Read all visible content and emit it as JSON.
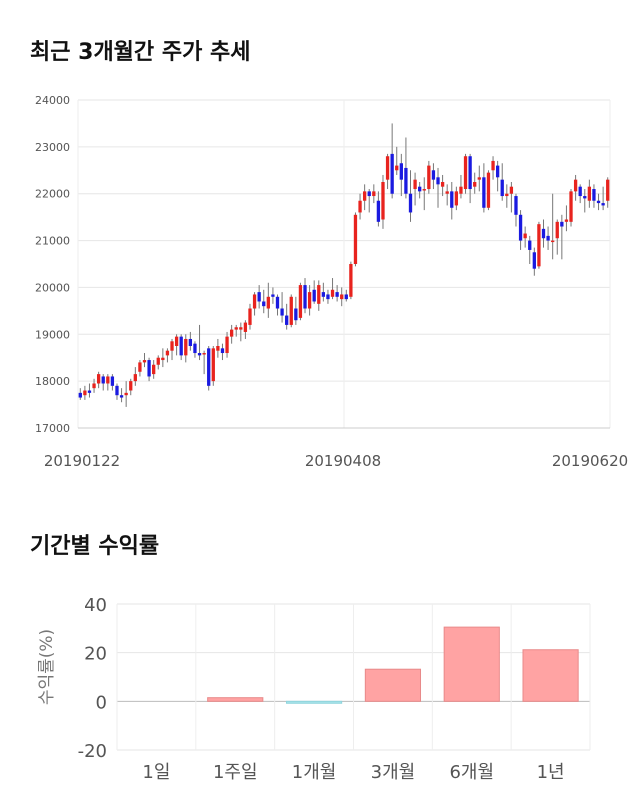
{
  "sections": {
    "price_title": "최근 3개월간 주가 추세",
    "returns_title": "기간별 수익률"
  },
  "chart_data": [
    {
      "type": "candlestick",
      "title": "최근 3개월간 주가 추세",
      "ylim": [
        17000,
        24000
      ],
      "yticks": [
        "24000",
        "23000",
        "22000",
        "21000",
        "20000",
        "19000",
        "18000",
        "17000"
      ],
      "xticks": [
        "20190122",
        "20190408",
        "20190620"
      ],
      "grid": true,
      "colors": {
        "up": "#e8231e",
        "down": "#1a1ae0",
        "wick": "#777777"
      },
      "candles": [
        [
          17750,
          17650,
          17850,
          17600
        ],
        [
          17700,
          17800,
          17900,
          17600
        ],
        [
          17800,
          17750,
          17950,
          17650
        ],
        [
          17850,
          17950,
          18050,
          17750
        ],
        [
          17950,
          18150,
          18200,
          17850
        ],
        [
          18100,
          17950,
          18150,
          17800
        ],
        [
          17950,
          18100,
          18150,
          17800
        ],
        [
          18100,
          17900,
          18150,
          17800
        ],
        [
          17900,
          17700,
          17950,
          17600
        ],
        [
          17700,
          17650,
          17850,
          17550
        ],
        [
          17700,
          17750,
          18000,
          17450
        ],
        [
          17800,
          18000,
          18050,
          17700
        ],
        [
          18000,
          18150,
          18300,
          17900
        ],
        [
          18200,
          18400,
          18450,
          18100
        ],
        [
          18400,
          18450,
          18600,
          18300
        ],
        [
          18450,
          18100,
          18500,
          18000
        ],
        [
          18150,
          18350,
          18450,
          18050
        ],
        [
          18350,
          18500,
          18550,
          18250
        ],
        [
          18450,
          18500,
          18700,
          18300
        ],
        [
          18550,
          18650,
          18700,
          18400
        ],
        [
          18650,
          18850,
          18900,
          18450
        ],
        [
          18750,
          18950,
          19000,
          18550
        ],
        [
          18950,
          18550,
          19000,
          18450
        ],
        [
          18550,
          18900,
          19000,
          18400
        ],
        [
          18900,
          18750,
          19050,
          18650
        ],
        [
          18800,
          18600,
          18850,
          18500
        ],
        [
          18600,
          18550,
          19200,
          18450
        ],
        [
          18600,
          18600,
          18650,
          18150
        ],
        [
          18700,
          17900,
          18750,
          17800
        ],
        [
          18000,
          18700,
          18750,
          17900
        ],
        [
          18650,
          18750,
          18900,
          18500
        ],
        [
          18700,
          18600,
          18800,
          18450
        ],
        [
          18600,
          18950,
          19050,
          18500
        ],
        [
          18950,
          19100,
          19200,
          18800
        ],
        [
          19100,
          19150,
          19200,
          18950
        ],
        [
          19100,
          19150,
          19250,
          18850
        ],
        [
          19050,
          19250,
          19300,
          18900
        ],
        [
          19200,
          19550,
          19650,
          19100
        ],
        [
          19550,
          19850,
          19900,
          19400
        ],
        [
          19900,
          19700,
          20050,
          19550
        ],
        [
          19700,
          19600,
          19950,
          19450
        ],
        [
          19550,
          19800,
          20100,
          19350
        ],
        [
          19850,
          19800,
          20000,
          19650
        ],
        [
          19800,
          19550,
          19850,
          19400
        ],
        [
          19550,
          19400,
          19900,
          19250
        ],
        [
          19400,
          19200,
          19650,
          19100
        ],
        [
          19200,
          19800,
          19850,
          19150
        ],
        [
          19550,
          19300,
          19800,
          19200
        ],
        [
          19350,
          20050,
          20100,
          19300
        ],
        [
          20050,
          19550,
          20200,
          19450
        ],
        [
          19550,
          19900,
          20050,
          19400
        ],
        [
          19950,
          19700,
          20150,
          19650
        ],
        [
          19650,
          20050,
          20150,
          19500
        ],
        [
          19900,
          19800,
          20100,
          19700
        ],
        [
          19850,
          19750,
          19950,
          19650
        ],
        [
          19800,
          19950,
          20200,
          19750
        ],
        [
          19900,
          19800,
          20050,
          19700
        ],
        [
          19750,
          19850,
          20000,
          19600
        ],
        [
          19850,
          19750,
          19950,
          19700
        ],
        [
          19800,
          20500,
          20550,
          19750
        ],
        [
          20500,
          21550,
          21600,
          20450
        ],
        [
          21600,
          21850,
          22000,
          21450
        ],
        [
          21850,
          22050,
          22200,
          21650
        ],
        [
          22050,
          21950,
          22100,
          21600
        ],
        [
          21950,
          22050,
          22200,
          21800
        ],
        [
          21850,
          21400,
          22050,
          21300
        ],
        [
          21450,
          22250,
          22400,
          21250
        ],
        [
          22300,
          22800,
          22850,
          22100
        ],
        [
          22850,
          22000,
          23500,
          21900
        ],
        [
          22500,
          22600,
          23000,
          22400
        ],
        [
          22650,
          22300,
          22850,
          21950
        ],
        [
          22550,
          22000,
          23200,
          21900
        ],
        [
          22000,
          21600,
          22500,
          21400
        ],
        [
          22100,
          22300,
          22450,
          21750
        ],
        [
          22150,
          22050,
          22250,
          21900
        ],
        [
          22100,
          22100,
          22350,
          21650
        ],
        [
          22100,
          22600,
          22700,
          22000
        ],
        [
          22500,
          22300,
          22650,
          22100
        ],
        [
          22350,
          22200,
          22550,
          21700
        ],
        [
          22150,
          22250,
          22400,
          21950
        ],
        [
          22000,
          22050,
          22200,
          21750
        ],
        [
          22050,
          21700,
          22250,
          21450
        ],
        [
          21750,
          22050,
          22150,
          21650
        ],
        [
          22000,
          22150,
          22400,
          21900
        ],
        [
          22100,
          22800,
          22850,
          22000
        ],
        [
          22800,
          22100,
          22850,
          21800
        ],
        [
          22150,
          22250,
          22450,
          22000
        ],
        [
          22300,
          22350,
          22600,
          22050
        ],
        [
          22350,
          21700,
          22650,
          21600
        ],
        [
          21700,
          22450,
          22500,
          21650
        ],
        [
          22500,
          22700,
          22800,
          22300
        ],
        [
          22600,
          22350,
          22700,
          22050
        ],
        [
          22300,
          21950,
          22650,
          21850
        ],
        [
          21950,
          22000,
          22200,
          21700
        ],
        [
          22000,
          22150,
          22250,
          21600
        ],
        [
          21950,
          21550,
          22000,
          21300
        ],
        [
          21550,
          21000,
          21650,
          20800
        ],
        [
          21050,
          21150,
          21300,
          20850
        ],
        [
          21000,
          20800,
          21100,
          20500
        ],
        [
          20750,
          20400,
          20850,
          20250
        ],
        [
          20450,
          21350,
          21400,
          20400
        ],
        [
          21250,
          21050,
          21450,
          20850
        ],
        [
          21100,
          21000,
          21300,
          20800
        ],
        [
          21000,
          21000,
          22000,
          20600
        ],
        [
          21050,
          21400,
          21450,
          20700
        ],
        [
          21400,
          21300,
          21550,
          20600
        ],
        [
          21400,
          21450,
          21750,
          21200
        ],
        [
          21400,
          22050,
          22100,
          21300
        ],
        [
          22050,
          22300,
          22400,
          21850
        ],
        [
          22150,
          21950,
          22200,
          21800
        ],
        [
          21950,
          21900,
          22100,
          21600
        ],
        [
          21850,
          22150,
          22300,
          21700
        ],
        [
          22100,
          21850,
          22200,
          21700
        ],
        [
          21850,
          21800,
          22000,
          21650
        ],
        [
          21800,
          21750,
          22150,
          21650
        ],
        [
          21850,
          22300,
          22350,
          21700
        ]
      ]
    },
    {
      "type": "bar",
      "title": "기간별 수익률",
      "ylabel": "수익률(%)",
      "ylim": [
        -20,
        40
      ],
      "yticks": [
        "40",
        "20",
        "0",
        "-20"
      ],
      "categories": [
        "1일",
        "1주일",
        "1개월",
        "3개월",
        "6개월",
        "1년"
      ],
      "values": [
        0,
        1.5,
        -0.8,
        13.2,
        30.5,
        21.2
      ],
      "grid": true,
      "colors": {
        "positive": "#ffa3a3",
        "positive_border": "#e88a8a",
        "negative": "#a7e4ea",
        "negative_border": "#8fd4dc"
      }
    }
  ]
}
